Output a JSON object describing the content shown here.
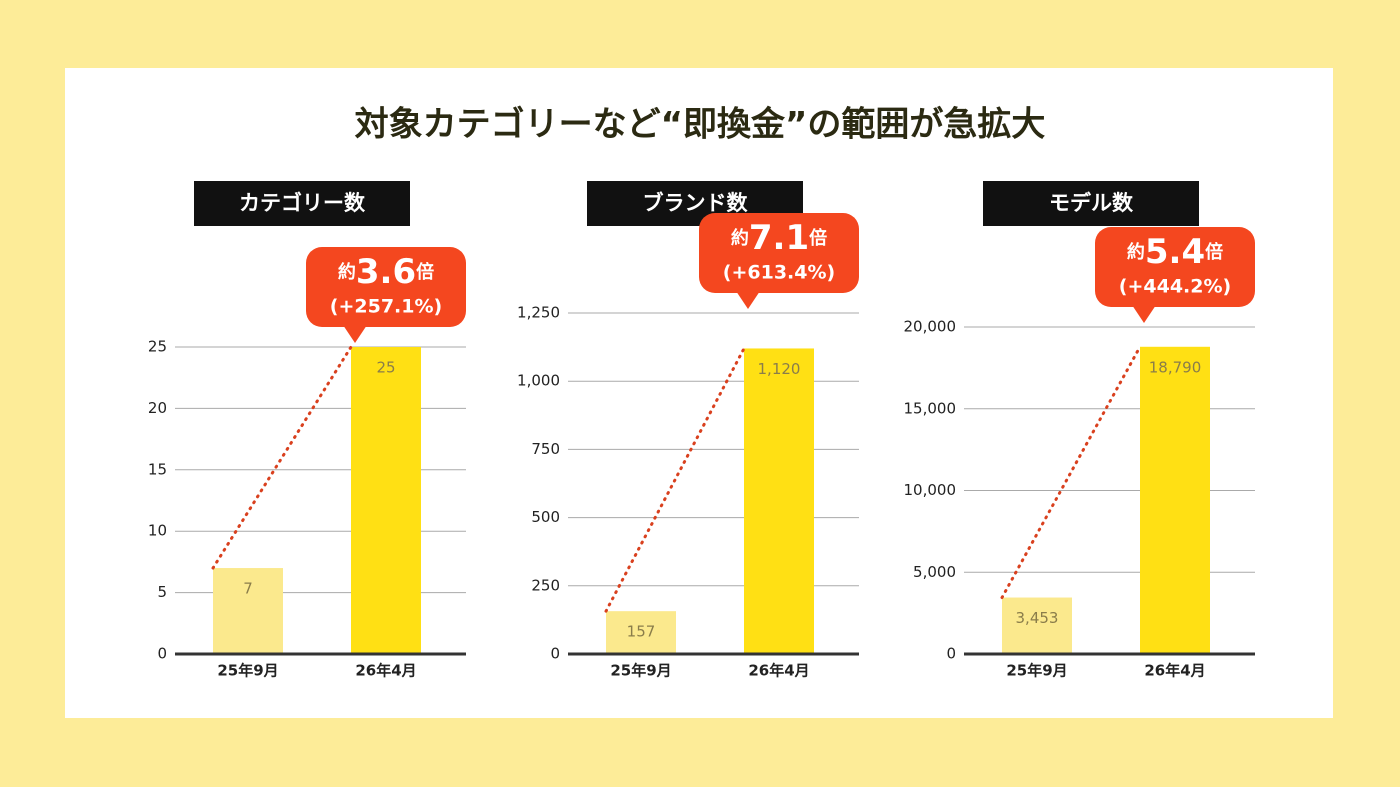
{
  "title": "対象カテゴリーなど“即換金”の範囲が急拡大",
  "chart_data": [
    {
      "type": "bar",
      "title": "カテゴリー数",
      "categories": [
        "25年9月",
        "26年4月"
      ],
      "values": [
        7,
        25
      ],
      "colors": [
        "#fbe98d",
        "#ffe014"
      ],
      "ylim": [
        0,
        25
      ],
      "yticks": [
        0,
        5,
        10,
        15,
        20,
        25
      ],
      "grid": true,
      "trend_color": "#d9401e",
      "callout_color": "#f4471f",
      "annotation": {
        "prefix": "約",
        "ratio": "3.6",
        "suffix": "倍",
        "change": "(+257.1%)"
      }
    },
    {
      "type": "bar",
      "title": "ブランド数",
      "categories": [
        "25年9月",
        "26年4月"
      ],
      "values": [
        157,
        1120
      ],
      "value_labels": [
        "157",
        "1,120"
      ],
      "colors": [
        "#fbe98d",
        "#ffe014"
      ],
      "ylim": [
        0,
        1250
      ],
      "yticks": [
        0,
        250,
        500,
        750,
        {
          "value": 1000,
          "label": "1,000"
        },
        {
          "value": 1250,
          "label": "1,250"
        }
      ],
      "grid": true,
      "trend_color": "#d9401e",
      "callout_color": "#f4471f",
      "annotation": {
        "prefix": "約",
        "ratio": "7.1",
        "suffix": "倍",
        "change": "(+613.4%)"
      }
    },
    {
      "type": "bar",
      "title": "モデル数",
      "categories": [
        "25年9月",
        "26年4月"
      ],
      "values": [
        3453,
        18790
      ],
      "value_labels": [
        "3,453",
        "18,790"
      ],
      "colors": [
        "#fbe98d",
        "#ffe014"
      ],
      "ylim": [
        0,
        20000
      ],
      "yticks": [
        0,
        {
          "value": 5000,
          "label": "5,000"
        },
        {
          "value": 10000,
          "label": "10,000"
        },
        {
          "value": 15000,
          "label": "15,000"
        },
        {
          "value": 20000,
          "label": "20,000"
        }
      ],
      "grid": true,
      "trend_color": "#d9401e",
      "callout_color": "#f4471f",
      "annotation": {
        "prefix": "約",
        "ratio": "5.4",
        "suffix": "倍",
        "change": "(+444.2%)"
      }
    }
  ]
}
